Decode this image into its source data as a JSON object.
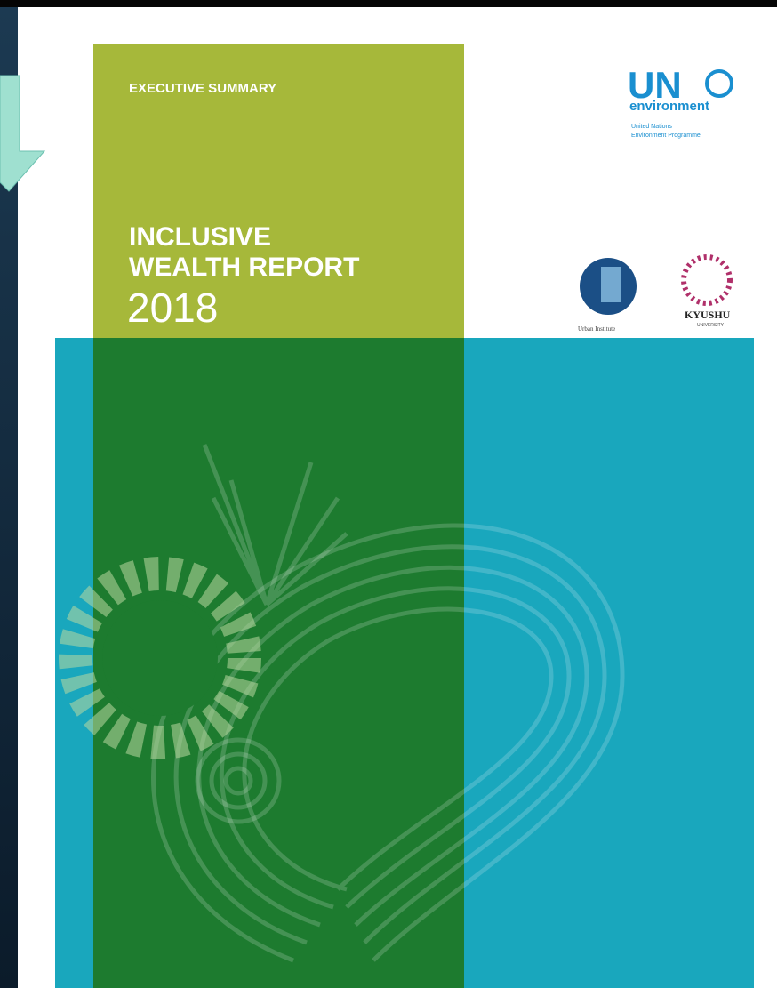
{
  "cover": {
    "label": "EXECUTIVE SUMMARY",
    "title_lines": [
      "INCLUSIVE",
      "WEALTH REPORT"
    ],
    "year": "2018"
  },
  "logos": {
    "un": "UN",
    "environment": "environment",
    "un_full": [
      "United Nations",
      "Environment Programme"
    ],
    "urban": "Urban Institute",
    "kyushu": "KYUSHU",
    "kyushu_sub": "UNIVERSITY"
  }
}
